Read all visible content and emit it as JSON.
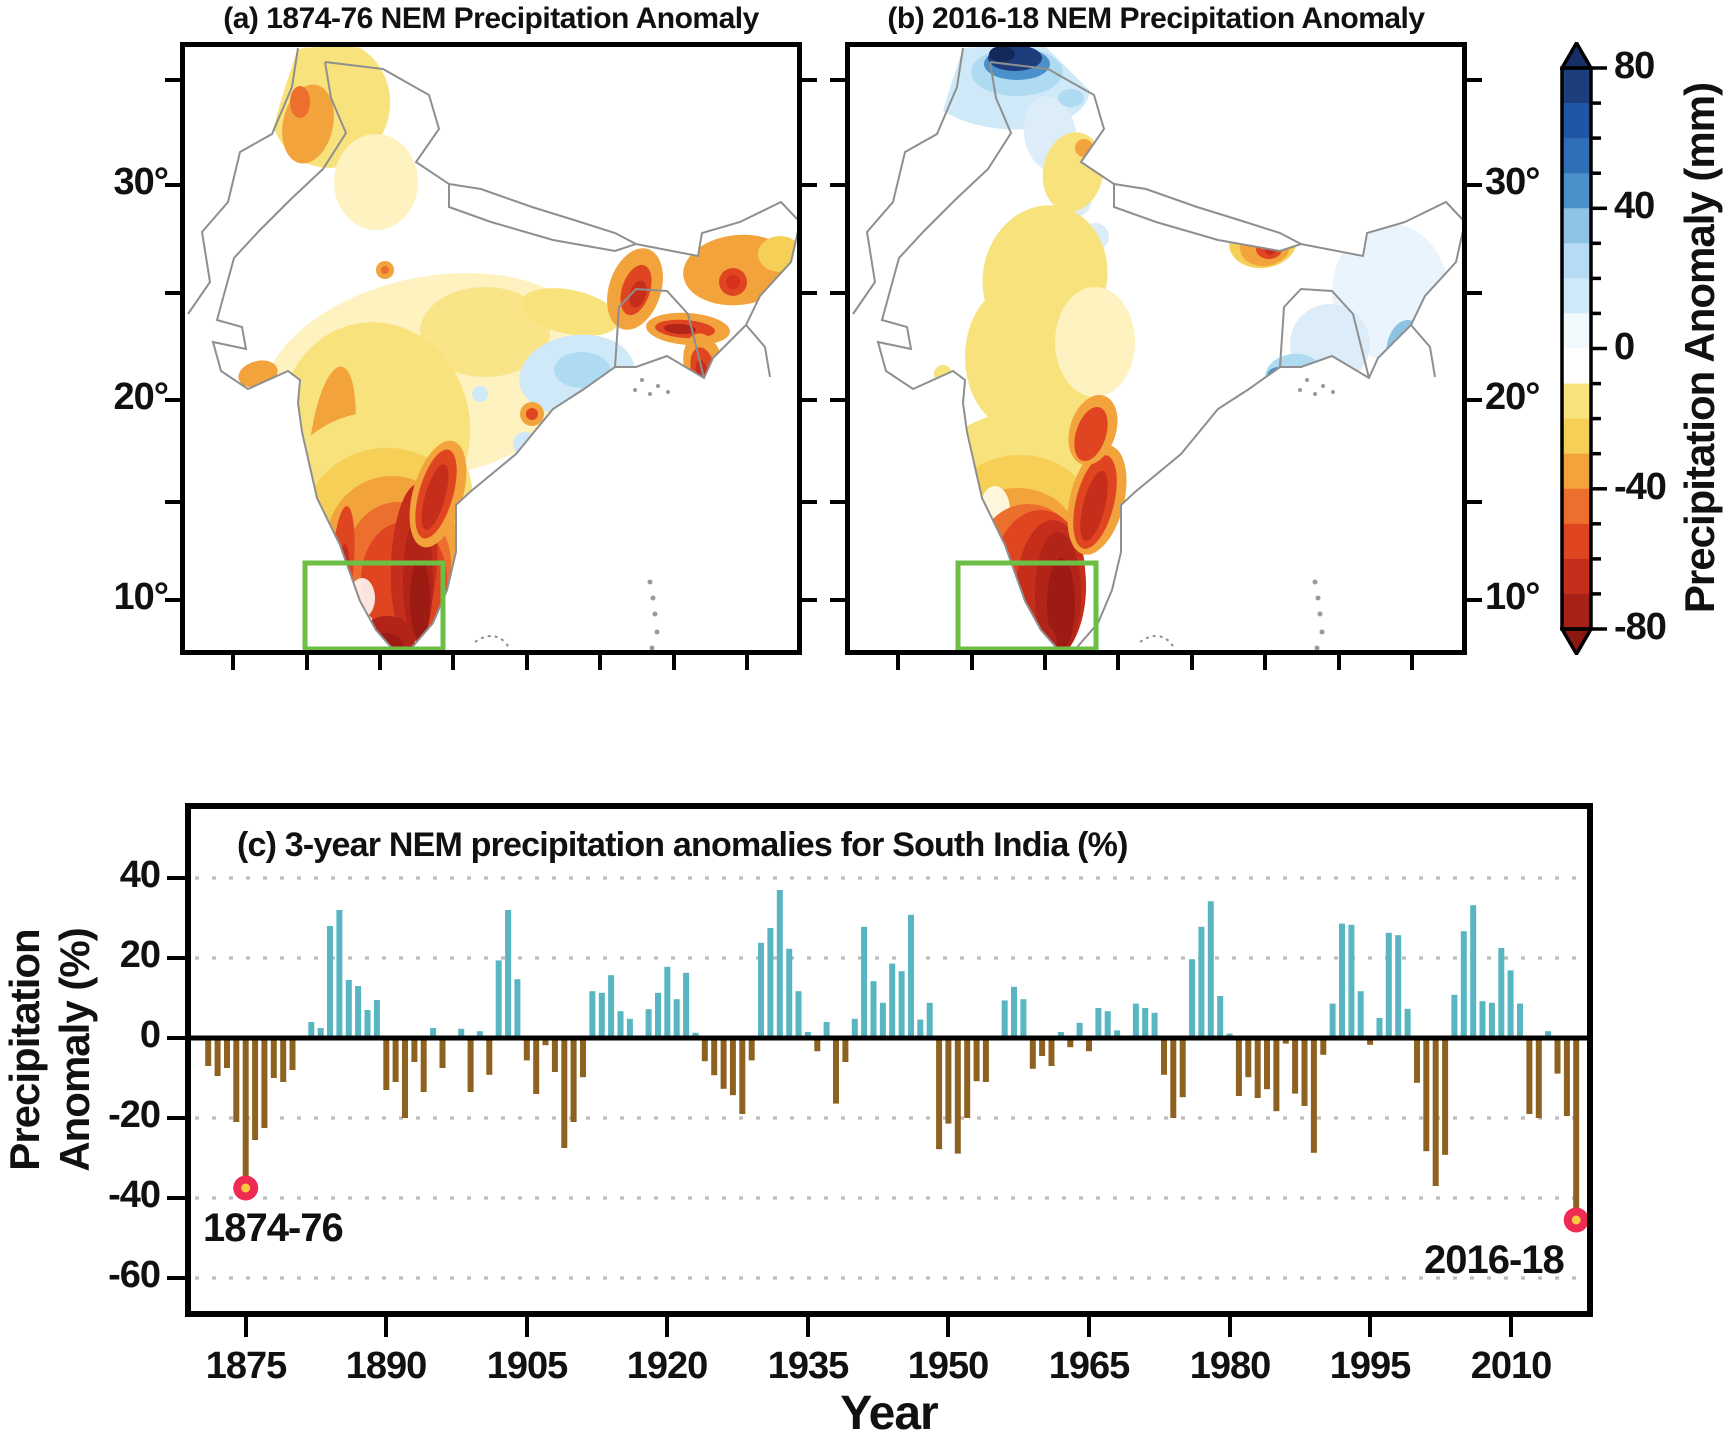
{
  "panels": {
    "a": {
      "title": "(a) 1874-76 NEM Precipitation Anomaly"
    },
    "b": {
      "title": "(b) 2016-18 NEM Precipitation Anomaly"
    },
    "c": {
      "title": "(c) 3-year NEM precipitation anomalies for South India (%)"
    }
  },
  "colorbar": {
    "label": "Precipitation Anomaly (mm)",
    "major_ticks": [
      80,
      40,
      0,
      -40,
      -80
    ],
    "minor_tick_step": 10,
    "value_range": [
      -80,
      80
    ],
    "segment_colors_high_to_low": [
      "#1d3e7c",
      "#2156a7",
      "#2e6fb8",
      "#4a90ca",
      "#8ec3e6",
      "#b5dcf4",
      "#cfe9f9",
      "#f2f9fd",
      "#ffffff",
      "#f8e27c",
      "#f6cf57",
      "#f2a33c",
      "#ec6f2d",
      "#e04522",
      "#c52e1a",
      "#a62117"
    ],
    "arrow_top_color": "#172f66",
    "arrow_bottom_color": "#8c1812"
  },
  "maps": {
    "lat_tick_labels": [
      "30°",
      "20°",
      "10°"
    ],
    "region_box_color": "#6cbe45",
    "coast_color": "#8f8f8f"
  },
  "axes_c": {
    "y_label_line1": "Precipitation",
    "y_label_line2": "Anomaly (%)",
    "x_label": "Year",
    "y_ticks": [
      40,
      20,
      0,
      -20,
      -40,
      -60
    ],
    "x_ticks": [
      1875,
      1890,
      1905,
      1920,
      1935,
      1950,
      1965,
      1980,
      1995,
      2010
    ]
  },
  "annotations": {
    "first_label": "1874-76",
    "last_label": "2016-18"
  },
  "chart_data": {
    "type": "bar",
    "title": "(c) 3-year NEM precipitation anomalies for South India (%)",
    "xlabel": "Year",
    "ylabel": "Precipitation Anomaly (%)",
    "x_start_year": 1871,
    "x_end_year": 2017,
    "ylim": [
      -68,
      58
    ],
    "grid_values": [
      40,
      20,
      -20,
      -40,
      -60
    ],
    "legend": "none",
    "positive_color": "#57b6c1",
    "negative_color": "#8d6221",
    "marker_ring_color": "#ee2c53",
    "marker_dot_color": "#f8c93e",
    "values": [
      -7,
      -9.5,
      -7.5,
      -21,
      -37.5,
      -25.5,
      -22.5,
      -10,
      -11,
      -8,
      0,
      4,
      2.5,
      28,
      32,
      14.5,
      13,
      7,
      9.5,
      -13,
      -11,
      -20,
      -6,
      -13.5,
      2.5,
      -7.5,
      0,
      2.3,
      -13.5,
      1.7,
      -9.2,
      19.4,
      32,
      14.7,
      -5.6,
      -14,
      -1.8,
      -8.5,
      -27.5,
      -21,
      -9.8,
      11.7,
      11.3,
      15.7,
      6.7,
      4.8,
      0,
      7.2,
      11.3,
      17.8,
      9.7,
      16.3,
      1.3,
      -5.8,
      -9.3,
      -12.7,
      -14.3,
      -19,
      -5.6,
      23.8,
      27.5,
      37,
      22.3,
      11.7,
      1.5,
      -3.3,
      4,
      -16.4,
      -6,
      4.8,
      27.8,
      14.2,
      8.8,
      18.6,
      16.7,
      30.8,
      4.6,
      8.8,
      -27.8,
      -21.4,
      -28.9,
      -20,
      -10.8,
      -11,
      0,
      9.4,
      12.8,
      9.7,
      -7.7,
      -4.5,
      -7,
      1.5,
      -2.3,
      3.8,
      -3.3,
      7.5,
      6.7,
      1.9,
      0,
      8.6,
      7.5,
      6.3,
      -9.2,
      -20,
      -14.8,
      19.7,
      27.8,
      34.2,
      10.5,
      1.1,
      -14.5,
      -9.8,
      -15,
      -12.8,
      -18.3,
      -1.4,
      -13.9,
      -17,
      -28.7,
      -4.2,
      8.6,
      28.6,
      28.3,
      11.7,
      -1.7,
      5,
      26.3,
      25.7,
      7.3,
      -11.2,
      -28.3,
      -37,
      -29.2,
      10.8,
      26.7,
      33.2,
      9.2,
      8.8,
      22.5,
      16.9,
      8.6,
      -19,
      -20,
      1.7,
      -8.9,
      -19.5,
      -45.5
    ],
    "highlighted_bars": [
      {
        "label": "1874-76",
        "year": 1875,
        "value": -37.5
      },
      {
        "label": "2016-18",
        "year": 2017,
        "value": -45.5
      }
    ]
  }
}
